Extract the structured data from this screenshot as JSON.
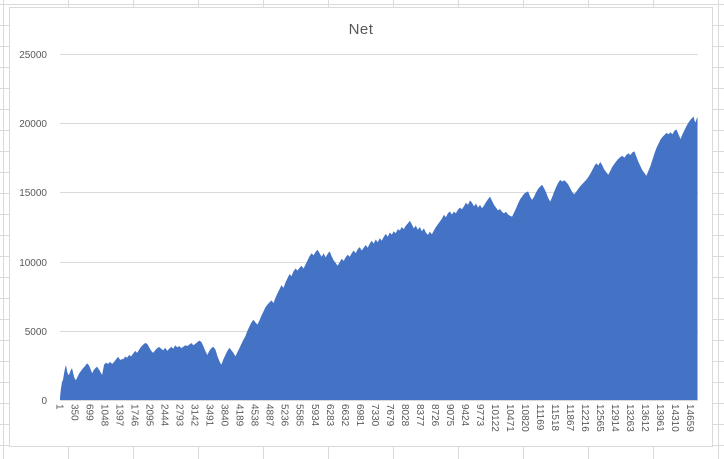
{
  "chart": {
    "title": "Net"
  },
  "chart_data": {
    "type": "area",
    "title": "Net",
    "legend_position": "none",
    "grid": "horizontal",
    "y_label": "",
    "x_label": "",
    "y_max": 25000,
    "y_min": 0,
    "x_max": 14830,
    "y_ticks": [
      0,
      5000,
      10000,
      15000,
      20000,
      25000
    ],
    "x_tick_start": 1,
    "x_tick_step": 349,
    "x_tick_labels": [
      "1",
      "350",
      "699",
      "1048",
      "1397",
      "1746",
      "2095",
      "2444",
      "2793",
      "3142",
      "3491",
      "3840",
      "4189",
      "4538",
      "4887",
      "5236",
      "5585",
      "5934",
      "6283",
      "6632",
      "6981",
      "7330",
      "7679",
      "8028",
      "8377",
      "8726",
      "9075",
      "9424",
      "9773",
      "10122",
      "10471",
      "10820",
      "11169",
      "11518",
      "11867",
      "12216",
      "12565",
      "12914",
      "13263",
      "13612",
      "13961",
      "14310",
      "14659"
    ],
    "colors": {
      "series": "#4472C4",
      "gridline": "#D9D9D9",
      "tick_text": "#595959",
      "title_text": "#595959",
      "chart_border": "#D9D9D9",
      "sheet_gridline": "#DADADA",
      "background": "#FFFFFF"
    },
    "points": [
      [
        1,
        200
      ],
      [
        23,
        800
      ],
      [
        47,
        1300
      ],
      [
        70,
        1450
      ],
      [
        93,
        1900
      ],
      [
        117,
        2300
      ],
      [
        140,
        2530
      ],
      [
        163,
        2100
      ],
      [
        186,
        1850
      ],
      [
        210,
        1810
      ],
      [
        233,
        2000
      ],
      [
        256,
        2200
      ],
      [
        280,
        2290
      ],
      [
        303,
        2000
      ],
      [
        326,
        1700
      ],
      [
        350,
        1500
      ],
      [
        373,
        1450
      ],
      [
        396,
        1600
      ],
      [
        443,
        1900
      ],
      [
        489,
        2100
      ],
      [
        536,
        2300
      ],
      [
        583,
        2450
      ],
      [
        629,
        2650
      ],
      [
        676,
        2500
      ],
      [
        722,
        2150
      ],
      [
        746,
        1930
      ],
      [
        792,
        2200
      ],
      [
        839,
        2350
      ],
      [
        862,
        2410
      ],
      [
        909,
        2200
      ],
      [
        955,
        1950
      ],
      [
        979,
        1810
      ],
      [
        1025,
        2560
      ],
      [
        1072,
        2700
      ],
      [
        1118,
        2600
      ],
      [
        1165,
        2770
      ],
      [
        1212,
        2600
      ],
      [
        1258,
        2750
      ],
      [
        1305,
        2950
      ],
      [
        1351,
        3130
      ],
      [
        1398,
        2900
      ],
      [
        1445,
        2950
      ],
      [
        1491,
        3000
      ],
      [
        1515,
        3150
      ],
      [
        1561,
        3050
      ],
      [
        1608,
        3250
      ],
      [
        1654,
        3150
      ],
      [
        1701,
        3350
      ],
      [
        1748,
        3550
      ],
      [
        1794,
        3400
      ],
      [
        1841,
        3650
      ],
      [
        1887,
        3850
      ],
      [
        1934,
        4000
      ],
      [
        1981,
        4120
      ],
      [
        2027,
        4050
      ],
      [
        2074,
        3800
      ],
      [
        2120,
        3550
      ],
      [
        2167,
        3400
      ],
      [
        2214,
        3600
      ],
      [
        2260,
        3750
      ],
      [
        2307,
        3830
      ],
      [
        2353,
        3700
      ],
      [
        2400,
        3600
      ],
      [
        2447,
        3780
      ],
      [
        2493,
        3550
      ],
      [
        2540,
        3700
      ],
      [
        2586,
        3850
      ],
      [
        2633,
        3700
      ],
      [
        2680,
        3950
      ],
      [
        2726,
        3800
      ],
      [
        2773,
        3900
      ],
      [
        2819,
        3750
      ],
      [
        2866,
        3850
      ],
      [
        2913,
        3950
      ],
      [
        2959,
        3900
      ],
      [
        3006,
        4000
      ],
      [
        3052,
        4120
      ],
      [
        3099,
        3950
      ],
      [
        3146,
        4050
      ],
      [
        3192,
        4180
      ],
      [
        3239,
        4290
      ],
      [
        3285,
        4200
      ],
      [
        3332,
        3900
      ],
      [
        3379,
        3550
      ],
      [
        3425,
        3250
      ],
      [
        3472,
        3550
      ],
      [
        3518,
        3750
      ],
      [
        3565,
        3850
      ],
      [
        3612,
        3650
      ],
      [
        3658,
        3200
      ],
      [
        3705,
        2800
      ],
      [
        3751,
        2550
      ],
      [
        3798,
        2950
      ],
      [
        3845,
        3250
      ],
      [
        3891,
        3550
      ],
      [
        3938,
        3780
      ],
      [
        3984,
        3600
      ],
      [
        4031,
        3400
      ],
      [
        4078,
        3150
      ],
      [
        4124,
        3450
      ],
      [
        4171,
        3750
      ],
      [
        4217,
        4050
      ],
      [
        4264,
        4350
      ],
      [
        4311,
        4600
      ],
      [
        4357,
        5000
      ],
      [
        4404,
        5300
      ],
      [
        4450,
        5600
      ],
      [
        4497,
        5800
      ],
      [
        4544,
        5600
      ],
      [
        4590,
        5450
      ],
      [
        4637,
        5750
      ],
      [
        4683,
        6100
      ],
      [
        4730,
        6400
      ],
      [
        4777,
        6700
      ],
      [
        4823,
        6900
      ],
      [
        4870,
        7050
      ],
      [
        4916,
        7200
      ],
      [
        4963,
        7000
      ],
      [
        5010,
        7400
      ],
      [
        5056,
        7700
      ],
      [
        5103,
        8000
      ],
      [
        5149,
        8300
      ],
      [
        5196,
        8100
      ],
      [
        5243,
        8500
      ],
      [
        5289,
        8800
      ],
      [
        5336,
        9100
      ],
      [
        5382,
        8950
      ],
      [
        5429,
        9300
      ],
      [
        5476,
        9500
      ],
      [
        5522,
        9350
      ],
      [
        5569,
        9550
      ],
      [
        5615,
        9700
      ],
      [
        5662,
        9500
      ],
      [
        5709,
        9800
      ],
      [
        5755,
        10100
      ],
      [
        5802,
        10400
      ],
      [
        5848,
        10600
      ],
      [
        5895,
        10450
      ],
      [
        5942,
        10700
      ],
      [
        5988,
        10850
      ],
      [
        6035,
        10600
      ],
      [
        6081,
        10350
      ],
      [
        6128,
        10600
      ],
      [
        6175,
        10300
      ],
      [
        6221,
        10550
      ],
      [
        6268,
        10750
      ],
      [
        6314,
        10400
      ],
      [
        6361,
        10100
      ],
      [
        6408,
        9900
      ],
      [
        6454,
        9700
      ],
      [
        6501,
        9950
      ],
      [
        6547,
        10200
      ],
      [
        6594,
        10050
      ],
      [
        6640,
        10300
      ],
      [
        6687,
        10500
      ],
      [
        6734,
        10350
      ],
      [
        6780,
        10600
      ],
      [
        6827,
        10800
      ],
      [
        6873,
        10600
      ],
      [
        6920,
        10900
      ],
      [
        6967,
        11050
      ],
      [
        7013,
        10800
      ],
      [
        7060,
        11000
      ],
      [
        7106,
        11200
      ],
      [
        7153,
        11000
      ],
      [
        7200,
        11300
      ],
      [
        7246,
        11500
      ],
      [
        7293,
        11300
      ],
      [
        7339,
        11600
      ],
      [
        7386,
        11400
      ],
      [
        7433,
        11700
      ],
      [
        7479,
        11500
      ],
      [
        7526,
        11800
      ],
      [
        7572,
        12000
      ],
      [
        7619,
        11800
      ],
      [
        7666,
        12100
      ],
      [
        7712,
        11950
      ],
      [
        7759,
        12200
      ],
      [
        7805,
        12050
      ],
      [
        7852,
        12350
      ],
      [
        7899,
        12250
      ],
      [
        7945,
        12500
      ],
      [
        7992,
        12350
      ],
      [
        8038,
        12600
      ],
      [
        8085,
        12750
      ],
      [
        8132,
        12945
      ],
      [
        8178,
        12700
      ],
      [
        8225,
        12400
      ],
      [
        8271,
        12600
      ],
      [
        8318,
        12300
      ],
      [
        8365,
        12500
      ],
      [
        8411,
        12200
      ],
      [
        8458,
        12400
      ],
      [
        8504,
        12100
      ],
      [
        8551,
        11930
      ],
      [
        8598,
        12150
      ],
      [
        8644,
        11980
      ],
      [
        8691,
        12250
      ],
      [
        8737,
        12500
      ],
      [
        8784,
        12700
      ],
      [
        8831,
        12900
      ],
      [
        8877,
        13100
      ],
      [
        8924,
        13380
      ],
      [
        8970,
        13200
      ],
      [
        9017,
        13500
      ],
      [
        9064,
        13620
      ],
      [
        9110,
        13400
      ],
      [
        9157,
        13600
      ],
      [
        9203,
        13500
      ],
      [
        9250,
        13750
      ],
      [
        9297,
        13900
      ],
      [
        9343,
        13780
      ],
      [
        9390,
        14000
      ],
      [
        9436,
        14250
      ],
      [
        9483,
        14100
      ],
      [
        9530,
        14420
      ],
      [
        9576,
        14250
      ],
      [
        9623,
        14000
      ],
      [
        9669,
        14200
      ],
      [
        9716,
        13900
      ],
      [
        9763,
        14100
      ],
      [
        9809,
        13850
      ],
      [
        9856,
        14050
      ],
      [
        9902,
        14300
      ],
      [
        9949,
        14500
      ],
      [
        9996,
        14700
      ],
      [
        10042,
        14400
      ],
      [
        10089,
        14100
      ],
      [
        10135,
        13900
      ],
      [
        10182,
        13700
      ],
      [
        10229,
        13800
      ],
      [
        10275,
        13600
      ],
      [
        10322,
        13480
      ],
      [
        10368,
        13600
      ],
      [
        10415,
        13400
      ],
      [
        10462,
        13300
      ],
      [
        10508,
        13250
      ],
      [
        10555,
        13550
      ],
      [
        10601,
        13850
      ],
      [
        10648,
        14200
      ],
      [
        10695,
        14500
      ],
      [
        10741,
        14700
      ],
      [
        10788,
        14900
      ],
      [
        10834,
        15000
      ],
      [
        10881,
        15070
      ],
      [
        10928,
        14700
      ],
      [
        10974,
        14460
      ],
      [
        11021,
        14700
      ],
      [
        11067,
        15000
      ],
      [
        11114,
        15250
      ],
      [
        11161,
        15420
      ],
      [
        11207,
        15550
      ],
      [
        11254,
        15300
      ],
      [
        11300,
        15000
      ],
      [
        11347,
        14600
      ],
      [
        11394,
        14340
      ],
      [
        11440,
        14650
      ],
      [
        11487,
        15050
      ],
      [
        11533,
        15400
      ],
      [
        11580,
        15700
      ],
      [
        11627,
        15900
      ],
      [
        11673,
        15780
      ],
      [
        11720,
        15880
      ],
      [
        11766,
        15750
      ],
      [
        11813,
        15580
      ],
      [
        11860,
        15300
      ],
      [
        11906,
        15020
      ],
      [
        11953,
        14870
      ],
      [
        11999,
        15050
      ],
      [
        12046,
        15250
      ],
      [
        12093,
        15450
      ],
      [
        12139,
        15600
      ],
      [
        12186,
        15750
      ],
      [
        12232,
        15900
      ],
      [
        12279,
        16100
      ],
      [
        12326,
        16350
      ],
      [
        12372,
        16600
      ],
      [
        12419,
        16900
      ],
      [
        12465,
        17100
      ],
      [
        12512,
        16950
      ],
      [
        12559,
        17200
      ],
      [
        12605,
        16950
      ],
      [
        12652,
        16650
      ],
      [
        12698,
        16450
      ],
      [
        12745,
        16270
      ],
      [
        12792,
        16550
      ],
      [
        12838,
        16850
      ],
      [
        12885,
        17050
      ],
      [
        12931,
        17250
      ],
      [
        12978,
        17420
      ],
      [
        13025,
        17550
      ],
      [
        13071,
        17650
      ],
      [
        13118,
        17500
      ],
      [
        13164,
        17700
      ],
      [
        13211,
        17820
      ],
      [
        13258,
        17700
      ],
      [
        13304,
        17880
      ],
      [
        13351,
        17960
      ],
      [
        13397,
        17600
      ],
      [
        13444,
        17200
      ],
      [
        13491,
        16900
      ],
      [
        13537,
        16600
      ],
      [
        13584,
        16400
      ],
      [
        13630,
        16200
      ],
      [
        13677,
        16550
      ],
      [
        13724,
        16900
      ],
      [
        13770,
        17350
      ],
      [
        13817,
        17800
      ],
      [
        13863,
        18200
      ],
      [
        13910,
        18500
      ],
      [
        13957,
        18800
      ],
      [
        14003,
        19000
      ],
      [
        14050,
        19150
      ],
      [
        14096,
        19300
      ],
      [
        14143,
        19200
      ],
      [
        14190,
        19350
      ],
      [
        14236,
        19200
      ],
      [
        14283,
        19450
      ],
      [
        14329,
        19550
      ],
      [
        14376,
        19200
      ],
      [
        14423,
        18850
      ],
      [
        14469,
        19200
      ],
      [
        14516,
        19500
      ],
      [
        14562,
        19800
      ],
      [
        14609,
        20050
      ],
      [
        14656,
        20250
      ],
      [
        14702,
        20400
      ],
      [
        14725,
        20490
      ],
      [
        14749,
        20200
      ],
      [
        14772,
        20050
      ],
      [
        14795,
        20300
      ],
      [
        14819,
        20450
      ]
    ]
  }
}
